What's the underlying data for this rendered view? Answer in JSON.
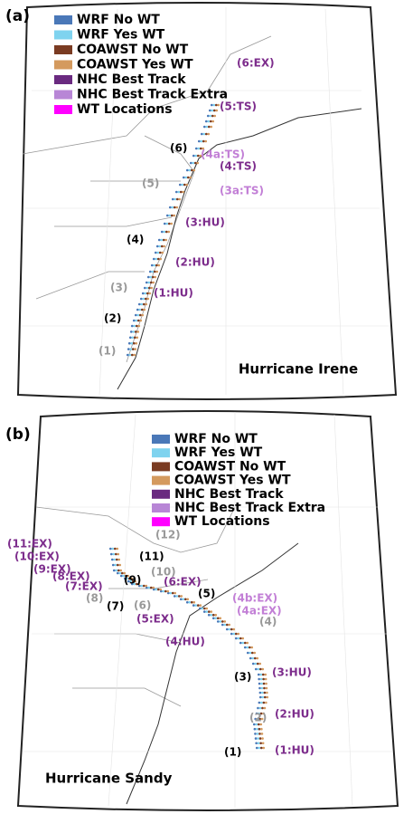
{
  "panels": [
    {
      "label": "(a)",
      "title": "Hurricane Irene",
      "legend": [
        {
          "text": "WRF No WT",
          "color": "#4a78b8"
        },
        {
          "text": "WRF Yes WT",
          "color": "#7fd3ef"
        },
        {
          "text": "COAWST No WT",
          "color": "#7a3b22"
        },
        {
          "text": "COAWST Yes WT",
          "color": "#d49a5e"
        },
        {
          "text": "NHC Best Track",
          "color": "#6a2a80"
        },
        {
          "text": "NHC Best Track Extra",
          "color": "#b886d6"
        },
        {
          "text": "WT Locations",
          "color": "#ff00ff"
        }
      ],
      "annotations": [
        {
          "text": "(6:EX)",
          "color": "#7d2d8c"
        },
        {
          "text": "(5:TS)",
          "color": "#7d2d8c"
        },
        {
          "text": "(4a:TS)",
          "color": "#c27fd6"
        },
        {
          "text": "(4:TS)",
          "color": "#7d2d8c"
        },
        {
          "text": "(3a:TS)",
          "color": "#c27fd6"
        },
        {
          "text": "(3:HU)",
          "color": "#7d2d8c"
        },
        {
          "text": "(2:HU)",
          "color": "#7d2d8c"
        },
        {
          "text": "(1:HU)",
          "color": "#7d2d8c"
        },
        {
          "text": "(6)",
          "color": "#000000"
        },
        {
          "text": "(4)",
          "color": "#000000"
        },
        {
          "text": "(2)",
          "color": "#000000"
        },
        {
          "text": "(5)",
          "color": "#999999"
        },
        {
          "text": "(3)",
          "color": "#999999"
        },
        {
          "text": "(1)",
          "color": "#999999"
        }
      ]
    },
    {
      "label": "(b)",
      "title": "Hurricane Sandy",
      "legend": [
        {
          "text": "WRF No WT",
          "color": "#4a78b8"
        },
        {
          "text": "WRF Yes WT",
          "color": "#7fd3ef"
        },
        {
          "text": "COAWST No WT",
          "color": "#7a3b22"
        },
        {
          "text": "COAWST Yes WT",
          "color": "#d49a5e"
        },
        {
          "text": "NHC Best Track",
          "color": "#6a2a80"
        },
        {
          "text": "NHC Best Track Extra",
          "color": "#b886d6"
        },
        {
          "text": "WT Locations",
          "color": "#ff00ff"
        }
      ],
      "annotations": [
        {
          "text": "(11:EX)",
          "color": "#7d2d8c"
        },
        {
          "text": "(10:EX)",
          "color": "#7d2d8c"
        },
        {
          "text": "(9:EX)",
          "color": "#7d2d8c"
        },
        {
          "text": "(8:EX)",
          "color": "#7d2d8c"
        },
        {
          "text": "(7:EX)",
          "color": "#7d2d8c"
        },
        {
          "text": "(12)",
          "color": "#999999"
        },
        {
          "text": "(11)",
          "color": "#000000"
        },
        {
          "text": "(10)",
          "color": "#999999"
        },
        {
          "text": "(9)",
          "color": "#000000"
        },
        {
          "text": "(8)",
          "color": "#999999"
        },
        {
          "text": "(7)",
          "color": "#000000"
        },
        {
          "text": "(6)",
          "color": "#999999"
        },
        {
          "text": "(6:EX)",
          "color": "#7d2d8c"
        },
        {
          "text": "(5)",
          "color": "#000000"
        },
        {
          "text": "(5:EX)",
          "color": "#7d2d8c"
        },
        {
          "text": "(4b:EX)",
          "color": "#c27fd6"
        },
        {
          "text": "(4a:EX)",
          "color": "#c27fd6"
        },
        {
          "text": "(4)",
          "color": "#999999"
        },
        {
          "text": "(4:HU)",
          "color": "#7d2d8c"
        },
        {
          "text": "(3)",
          "color": "#000000"
        },
        {
          "text": "(3:HU)",
          "color": "#7d2d8c"
        },
        {
          "text": "(2)",
          "color": "#999999"
        },
        {
          "text": "(2:HU)",
          "color": "#7d2d8c"
        },
        {
          "text": "(1)",
          "color": "#000000"
        },
        {
          "text": "(1:HU)",
          "color": "#7d2d8c"
        }
      ]
    }
  ]
}
